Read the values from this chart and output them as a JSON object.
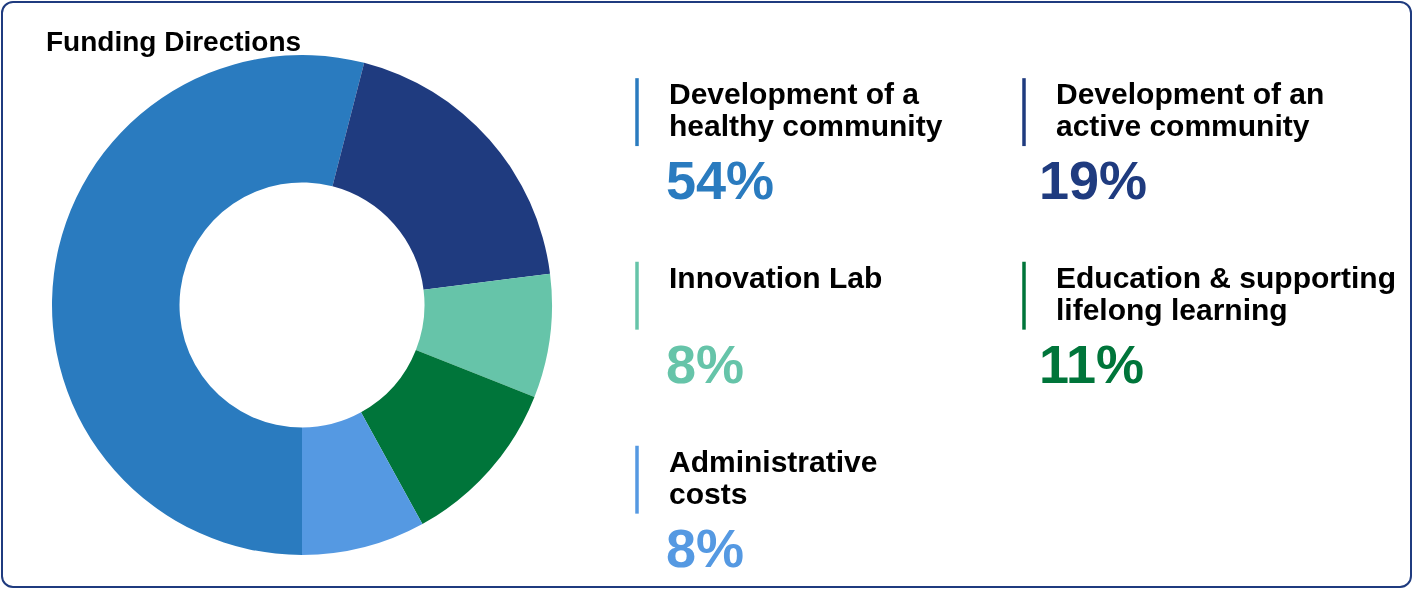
{
  "chart_data": {
    "type": "donut",
    "title": "Funding Directions",
    "categories": [
      "Development of a healthy community",
      "Development of an active community",
      "Innovation Lab",
      "Education & supporting lifelong learning",
      "Administrative costs"
    ],
    "values": [
      54,
      19,
      8,
      11,
      8
    ],
    "colors": [
      "#2a7bbf",
      "#1f3b7f",
      "#66c4a9",
      "#00753a",
      "#5599e2"
    ],
    "value_labels": [
      "54%",
      "19%",
      "8%",
      "11%",
      "8%"
    ],
    "legend": "right"
  }
}
